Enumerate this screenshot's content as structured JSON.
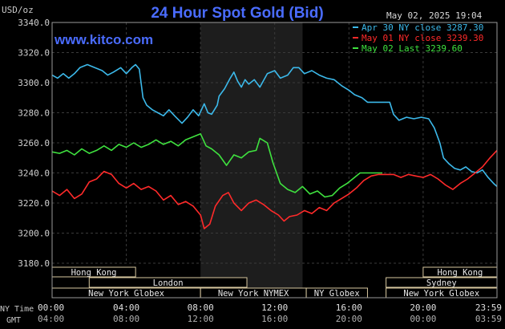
{
  "header": {
    "units": "USD/oz",
    "title": "24 Hour Spot Gold (Bid)",
    "timestamp": "May 02, 2025 19:04",
    "watermark": "www.kitco.com"
  },
  "legend": [
    {
      "label": "Apr 30 NY close 3287.30",
      "color": "#3cb9ea"
    },
    {
      "label": "May 01 NY close 3239.30",
      "color": "#ff2a2a"
    },
    {
      "label": "May 02 Last 3239.60",
      "color": "#3fe23f"
    }
  ],
  "sessions": [
    {
      "label": "Hong Kong",
      "start": 0.0,
      "end": 4.5
    },
    {
      "label": "London",
      "start": 2.0,
      "end": 10.5
    },
    {
      "label": "New York Globex",
      "start": 0.0,
      "end": 8.0
    },
    {
      "label": "New York NYMEX",
      "start": 8.0,
      "end": 13.7
    },
    {
      "label": "NY Globex",
      "start": 13.7,
      "end": 17.0
    },
    {
      "label": "Hong Kong",
      "start": 20.0,
      "end": 23.98
    },
    {
      "label": "Sydney",
      "start": 18.0,
      "end": 23.98
    },
    {
      "label": "New York Globex",
      "start": 18.0,
      "end": 23.98
    }
  ],
  "x_axis": {
    "row1_label": "NY Time",
    "row2_label": "GMT",
    "ny_ticks": [
      "00:00",
      "04:00",
      "08:00",
      "12:00",
      "16:00",
      "20:00",
      "23:59"
    ],
    "gmt_ticks": [
      "04:00",
      "08:00",
      "12:00",
      "16:00",
      "20:00",
      "00:00",
      "03:59"
    ]
  },
  "chart_data": {
    "type": "line",
    "title": "24 Hour Spot Gold (Bid)",
    "ylabel": "USD/oz",
    "xlabel": "NY Time",
    "ylim": [
      3180,
      3340
    ],
    "xlim": [
      0,
      23.98
    ],
    "yticks": [
      3180.0,
      3200.0,
      3220.0,
      3240.0,
      3260.0,
      3280.0,
      3300.0,
      3320.0,
      3340.0
    ],
    "grid": true,
    "legend_position": "top-right",
    "highlight_band": [
      8.0,
      13.5
    ],
    "series": [
      {
        "name": "Apr 30 NY close 3287.30",
        "color": "#3cb9ea",
        "points": [
          [
            0.0,
            3305
          ],
          [
            0.3,
            3303
          ],
          [
            0.6,
            3306
          ],
          [
            0.9,
            3303
          ],
          [
            1.2,
            3306
          ],
          [
            1.5,
            3310
          ],
          [
            1.9,
            3312
          ],
          [
            2.3,
            3310
          ],
          [
            2.7,
            3308
          ],
          [
            3.0,
            3305
          ],
          [
            3.3,
            3307
          ],
          [
            3.7,
            3310
          ],
          [
            4.0,
            3306
          ],
          [
            4.3,
            3310
          ],
          [
            4.5,
            3312
          ],
          [
            4.7,
            3309
          ],
          [
            4.9,
            3290
          ],
          [
            5.1,
            3285
          ],
          [
            5.4,
            3282
          ],
          [
            5.7,
            3280
          ],
          [
            6.0,
            3278
          ],
          [
            6.3,
            3282
          ],
          [
            6.6,
            3278
          ],
          [
            7.0,
            3273
          ],
          [
            7.3,
            3277
          ],
          [
            7.6,
            3282
          ],
          [
            7.9,
            3278
          ],
          [
            8.2,
            3286
          ],
          [
            8.4,
            3280
          ],
          [
            8.6,
            3279
          ],
          [
            8.9,
            3285
          ],
          [
            9.0,
            3291
          ],
          [
            9.3,
            3296
          ],
          [
            9.6,
            3303
          ],
          [
            9.8,
            3307
          ],
          [
            10.0,
            3301
          ],
          [
            10.2,
            3297
          ],
          [
            10.4,
            3302
          ],
          [
            10.6,
            3299
          ],
          [
            10.9,
            3302
          ],
          [
            11.2,
            3297
          ],
          [
            11.6,
            3306
          ],
          [
            12.0,
            3308
          ],
          [
            12.3,
            3303
          ],
          [
            12.7,
            3305
          ],
          [
            13.0,
            3310
          ],
          [
            13.3,
            3310
          ],
          [
            13.6,
            3306
          ],
          [
            14.0,
            3308
          ],
          [
            14.4,
            3305
          ],
          [
            14.8,
            3303
          ],
          [
            15.2,
            3302
          ],
          [
            15.6,
            3298
          ],
          [
            16.0,
            3295
          ],
          [
            16.3,
            3292
          ],
          [
            16.7,
            3290
          ],
          [
            17.0,
            3287
          ],
          [
            17.5,
            3287
          ],
          [
            18.0,
            3287
          ],
          [
            18.2,
            3287
          ],
          [
            18.4,
            3279
          ],
          [
            18.7,
            3275
          ],
          [
            19.1,
            3277
          ],
          [
            19.5,
            3276
          ],
          [
            19.9,
            3277
          ],
          [
            20.3,
            3276
          ],
          [
            20.6,
            3270
          ],
          [
            20.9,
            3260
          ],
          [
            21.1,
            3250
          ],
          [
            21.4,
            3246
          ],
          [
            21.7,
            3243
          ],
          [
            22.0,
            3242
          ],
          [
            22.3,
            3244
          ],
          [
            22.6,
            3241
          ],
          [
            22.9,
            3240
          ],
          [
            23.2,
            3242
          ],
          [
            23.5,
            3237
          ],
          [
            23.8,
            3233
          ],
          [
            23.98,
            3231
          ]
        ]
      },
      {
        "name": "May 01 NY close 3239.30",
        "color": "#ff2a2a",
        "points": [
          [
            0.0,
            3228
          ],
          [
            0.4,
            3225
          ],
          [
            0.8,
            3229
          ],
          [
            1.2,
            3223
          ],
          [
            1.6,
            3226
          ],
          [
            2.0,
            3234
          ],
          [
            2.4,
            3236
          ],
          [
            2.8,
            3241
          ],
          [
            3.2,
            3239
          ],
          [
            3.6,
            3233
          ],
          [
            4.0,
            3230
          ],
          [
            4.4,
            3233
          ],
          [
            4.8,
            3229
          ],
          [
            5.2,
            3231
          ],
          [
            5.6,
            3228
          ],
          [
            6.0,
            3222
          ],
          [
            6.4,
            3225
          ],
          [
            6.8,
            3219
          ],
          [
            7.2,
            3221
          ],
          [
            7.6,
            3218
          ],
          [
            8.0,
            3212
          ],
          [
            8.2,
            3203
          ],
          [
            8.5,
            3206
          ],
          [
            8.8,
            3218
          ],
          [
            9.2,
            3225
          ],
          [
            9.5,
            3227
          ],
          [
            9.8,
            3220
          ],
          [
            10.2,
            3215
          ],
          [
            10.6,
            3220
          ],
          [
            11.0,
            3222
          ],
          [
            11.4,
            3219
          ],
          [
            11.8,
            3215
          ],
          [
            12.2,
            3212
          ],
          [
            12.5,
            3208
          ],
          [
            12.8,
            3211
          ],
          [
            13.2,
            3212
          ],
          [
            13.6,
            3215
          ],
          [
            14.0,
            3213
          ],
          [
            14.4,
            3217
          ],
          [
            14.8,
            3215
          ],
          [
            15.2,
            3220
          ],
          [
            15.6,
            3223
          ],
          [
            16.0,
            3226
          ],
          [
            16.4,
            3230
          ],
          [
            16.8,
            3235
          ],
          [
            17.2,
            3238
          ],
          [
            17.6,
            3239
          ],
          [
            18.0,
            3239
          ],
          [
            18.4,
            3239
          ],
          [
            18.8,
            3237
          ],
          [
            19.2,
            3239
          ],
          [
            19.6,
            3238
          ],
          [
            20.0,
            3237
          ],
          [
            20.4,
            3239
          ],
          [
            20.8,
            3236
          ],
          [
            21.2,
            3232
          ],
          [
            21.6,
            3229
          ],
          [
            22.0,
            3233
          ],
          [
            22.4,
            3236
          ],
          [
            22.8,
            3240
          ],
          [
            23.2,
            3244
          ],
          [
            23.6,
            3250
          ],
          [
            23.98,
            3255
          ]
        ]
      },
      {
        "name": "May 02 Last 3239.60",
        "color": "#3fe23f",
        "points": [
          [
            0.0,
            3254
          ],
          [
            0.4,
            3253
          ],
          [
            0.8,
            3255
          ],
          [
            1.2,
            3252
          ],
          [
            1.6,
            3256
          ],
          [
            2.0,
            3253
          ],
          [
            2.4,
            3255
          ],
          [
            2.8,
            3258
          ],
          [
            3.2,
            3255
          ],
          [
            3.6,
            3259
          ],
          [
            4.0,
            3257
          ],
          [
            4.4,
            3260
          ],
          [
            4.8,
            3257
          ],
          [
            5.2,
            3259
          ],
          [
            5.6,
            3262
          ],
          [
            6.0,
            3259
          ],
          [
            6.4,
            3261
          ],
          [
            6.8,
            3258
          ],
          [
            7.2,
            3262
          ],
          [
            7.6,
            3264
          ],
          [
            8.0,
            3266
          ],
          [
            8.3,
            3258
          ],
          [
            8.6,
            3256
          ],
          [
            9.0,
            3252
          ],
          [
            9.4,
            3245
          ],
          [
            9.8,
            3252
          ],
          [
            10.2,
            3250
          ],
          [
            10.6,
            3254
          ],
          [
            11.0,
            3255
          ],
          [
            11.2,
            3263
          ],
          [
            11.6,
            3260
          ],
          [
            11.9,
            3247
          ],
          [
            12.3,
            3233
          ],
          [
            12.7,
            3229
          ],
          [
            13.1,
            3227
          ],
          [
            13.5,
            3231
          ],
          [
            13.9,
            3226
          ],
          [
            14.3,
            3228
          ],
          [
            14.7,
            3224
          ],
          [
            15.1,
            3225
          ],
          [
            15.5,
            3230
          ],
          [
            15.9,
            3233
          ],
          [
            16.3,
            3237
          ],
          [
            16.6,
            3240
          ],
          [
            17.0,
            3240
          ],
          [
            17.5,
            3240
          ],
          [
            17.8,
            3240
          ]
        ]
      }
    ]
  }
}
